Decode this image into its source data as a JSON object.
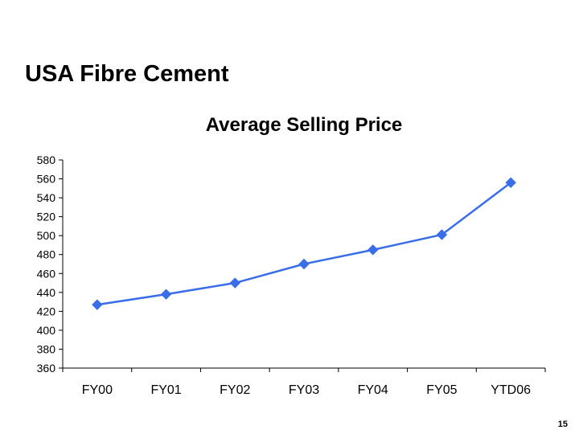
{
  "slide": {
    "title": "USA Fibre Cement",
    "page_number": "15"
  },
  "colors": {
    "series_line": "#3a6ee8",
    "axis": "#000000",
    "background": "#ffffff"
  },
  "chart_data": {
    "type": "line",
    "title": "Average Selling Price",
    "xlabel": "",
    "ylabel": "",
    "categories": [
      "FY00",
      "FY01",
      "FY02",
      "FY03",
      "FY04",
      "FY05",
      "YTD06"
    ],
    "series": [
      {
        "values": [
          427,
          438,
          450,
          470,
          485,
          501,
          556
        ]
      }
    ],
    "ylim": [
      360,
      580
    ],
    "ytick_step": 20,
    "grid": false,
    "legend": "none",
    "marker": "diamond"
  }
}
